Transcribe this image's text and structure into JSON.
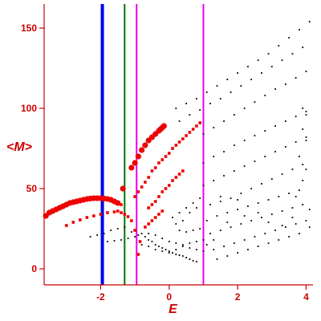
{
  "colors": {
    "axis": "#cc0000",
    "text": "#cc0000",
    "black_points": "#000000",
    "red_points": "#ee0000",
    "line_blue": "#0000ee",
    "line_green": "#007700",
    "line_magenta": "#ee00ee"
  },
  "chart_data": {
    "type": "scatter",
    "title": "",
    "xlabel": "E",
    "ylabel": "<M>",
    "xlim": [
      -3.65,
      4.2
    ],
    "ylim": [
      -10,
      165
    ],
    "x_ticks": [
      -2,
      0,
      2,
      4
    ],
    "y_ticks": [
      0,
      50,
      100,
      150
    ],
    "x_tick_labels": [
      "-2",
      "0",
      "2",
      "4"
    ],
    "y_tick_labels": [
      "0",
      "50",
      "100",
      "150"
    ],
    "grid": false,
    "legend": "none",
    "vertical_lines": [
      {
        "x": -1.95,
        "color": "blue",
        "style": "thick"
      },
      {
        "x": -1.3,
        "color": "green",
        "style": "thin"
      },
      {
        "x": -0.95,
        "color": "magenta",
        "style": "thin"
      },
      {
        "x": 1.0,
        "color": "magenta",
        "style": "thin"
      }
    ],
    "series": [
      {
        "color": "red",
        "marker": "filled-circle",
        "points": [
          [
            -3.6,
            33
          ],
          [
            -3.5,
            35
          ],
          [
            -3.4,
            36
          ],
          [
            -3.3,
            37
          ],
          [
            -3.2,
            38
          ],
          [
            -3.1,
            39
          ],
          [
            -3.0,
            40
          ],
          [
            -2.9,
            41
          ],
          [
            -2.8,
            41.5
          ],
          [
            -2.7,
            42
          ],
          [
            -2.6,
            42.5
          ],
          [
            -2.5,
            43
          ],
          [
            -2.4,
            43.5
          ],
          [
            -2.3,
            43.8
          ],
          [
            -2.2,
            44
          ],
          [
            -2.1,
            44
          ],
          [
            -2.0,
            44
          ],
          [
            -1.9,
            43.8
          ],
          [
            -1.8,
            43.5
          ],
          [
            -1.7,
            43
          ],
          [
            -1.6,
            42
          ],
          [
            -1.5,
            41
          ],
          [
            -1.35,
            50
          ],
          [
            -1.1,
            63
          ],
          [
            -1.0,
            66
          ],
          [
            -0.9,
            70
          ],
          [
            -0.8,
            74
          ],
          [
            -0.7,
            77
          ],
          [
            -0.6,
            80
          ],
          [
            -0.5,
            82
          ],
          [
            -0.4,
            84
          ],
          [
            -0.3,
            86
          ],
          [
            -0.25,
            87
          ],
          [
            -0.2,
            88
          ],
          [
            -0.15,
            89
          ]
        ]
      },
      {
        "color": "red",
        "marker": "small-square",
        "points": [
          [
            -3.0,
            27
          ],
          [
            -2.8,
            29
          ],
          [
            -2.6,
            30.5
          ],
          [
            -2.4,
            32
          ],
          [
            -2.2,
            33
          ],
          [
            -2.0,
            34
          ],
          [
            -1.8,
            35
          ],
          [
            -1.6,
            35.5
          ],
          [
            -1.4,
            35
          ],
          [
            -1.3,
            34
          ],
          [
            -1.2,
            32.5
          ],
          [
            -1.1,
            30
          ],
          [
            -1.5,
            36
          ],
          [
            -1.4,
            40
          ],
          [
            -1.0,
            24
          ],
          [
            -0.9,
            9
          ],
          [
            -0.85,
            17
          ],
          [
            -1.0,
            45
          ],
          [
            -0.9,
            48
          ],
          [
            -0.8,
            51
          ],
          [
            -0.7,
            54
          ],
          [
            -0.6,
            57
          ],
          [
            -0.5,
            61
          ],
          [
            -0.4,
            63
          ],
          [
            -0.3,
            66
          ],
          [
            -0.2,
            68
          ],
          [
            -0.1,
            70
          ],
          [
            0.0,
            72
          ],
          [
            0.1,
            75
          ],
          [
            0.2,
            77
          ],
          [
            0.3,
            79
          ],
          [
            0.4,
            81
          ],
          [
            0.5,
            83
          ],
          [
            0.6,
            85
          ],
          [
            0.7,
            87
          ],
          [
            0.8,
            89
          ],
          [
            0.9,
            91
          ],
          [
            -0.6,
            38
          ],
          [
            -0.5,
            40
          ],
          [
            -0.4,
            42
          ],
          [
            -0.3,
            45
          ],
          [
            -0.2,
            48
          ],
          [
            -0.1,
            50
          ],
          [
            0.0,
            52
          ],
          [
            0.1,
            55
          ],
          [
            0.2,
            57
          ],
          [
            0.3,
            59
          ],
          [
            0.4,
            61
          ],
          [
            -0.7,
            26
          ],
          [
            -0.6,
            28
          ],
          [
            -0.5,
            30
          ],
          [
            -0.4,
            32
          ],
          [
            -0.3,
            34
          ],
          [
            -0.2,
            36
          ]
        ]
      },
      {
        "color": "black",
        "marker": "dot",
        "points": [
          [
            -2.3,
            20
          ],
          [
            -2.1,
            21
          ],
          [
            -1.9,
            22
          ],
          [
            -1.7,
            24
          ],
          [
            -1.5,
            25
          ],
          [
            -1.3,
            26
          ],
          [
            -1.1,
            23
          ],
          [
            -1.8,
            17
          ],
          [
            -1.6,
            17.5
          ],
          [
            -1.4,
            18
          ],
          [
            -1.2,
            19
          ],
          [
            -1.0,
            20
          ],
          [
            -0.9,
            21
          ],
          [
            -0.8,
            22
          ],
          [
            -0.7,
            20
          ],
          [
            -0.6,
            18
          ],
          [
            -0.5,
            17
          ],
          [
            -0.4,
            15
          ],
          [
            -0.3,
            14
          ],
          [
            -0.2,
            13
          ],
          [
            -0.1,
            12
          ],
          [
            0.0,
            11
          ],
          [
            0.1,
            10
          ],
          [
            0.2,
            9
          ],
          [
            0.3,
            8.5
          ],
          [
            0.4,
            8
          ],
          [
            0.5,
            7
          ],
          [
            0.6,
            6
          ],
          [
            0.7,
            5
          ],
          [
            0.8,
            4.5
          ],
          [
            -0.6,
            22
          ],
          [
            -0.4,
            21
          ],
          [
            -0.2,
            19
          ],
          [
            0.0,
            17
          ],
          [
            0.2,
            16
          ],
          [
            0.4,
            15
          ],
          [
            0.6,
            13
          ],
          [
            0.8,
            12
          ],
          [
            1.0,
            11
          ],
          [
            -0.8,
            15
          ],
          [
            -0.6,
            14
          ],
          [
            -0.4,
            12
          ],
          [
            -0.2,
            11
          ],
          [
            0.0,
            10
          ],
          [
            0.2,
            12
          ],
          [
            0.4,
            14
          ],
          [
            0.6,
            16
          ],
          [
            0.8,
            17
          ],
          [
            1.0,
            18
          ],
          [
            0.2,
            100
          ],
          [
            0.5,
            103
          ],
          [
            0.8,
            106
          ],
          [
            1.1,
            110
          ],
          [
            1.4,
            114
          ],
          [
            1.7,
            118
          ],
          [
            2.0,
            122
          ],
          [
            2.3,
            126
          ],
          [
            2.6,
            130
          ],
          [
            2.9,
            134
          ],
          [
            3.2,
            139
          ],
          [
            3.5,
            144
          ],
          [
            3.8,
            149
          ],
          [
            4.1,
            154
          ],
          [
            0.3,
            92
          ],
          [
            0.6,
            96
          ],
          [
            0.9,
            99
          ],
          [
            1.2,
            103
          ],
          [
            1.5,
            106
          ],
          [
            1.8,
            110
          ],
          [
            2.1,
            114
          ],
          [
            2.4,
            118
          ],
          [
            2.7,
            122
          ],
          [
            3.0,
            126
          ],
          [
            3.3,
            130
          ],
          [
            3.6,
            134
          ],
          [
            3.9,
            138
          ],
          [
            1.0,
            84
          ],
          [
            1.3,
            88
          ],
          [
            1.6,
            92
          ],
          [
            1.9,
            96
          ],
          [
            2.2,
            100
          ],
          [
            2.5,
            104
          ],
          [
            2.8,
            108
          ],
          [
            3.1,
            112
          ],
          [
            3.4,
            115
          ],
          [
            3.7,
            119
          ],
          [
            4.0,
            123
          ],
          [
            1.0,
            66
          ],
          [
            1.3,
            70
          ],
          [
            1.6,
            73
          ],
          [
            1.9,
            77
          ],
          [
            2.2,
            80
          ],
          [
            2.5,
            83
          ],
          [
            2.8,
            86
          ],
          [
            3.1,
            89
          ],
          [
            3.4,
            92
          ],
          [
            3.7,
            95
          ],
          [
            4.0,
            98
          ],
          [
            1.0,
            52
          ],
          [
            1.3,
            55
          ],
          [
            1.6,
            58
          ],
          [
            1.9,
            61
          ],
          [
            2.2,
            64
          ],
          [
            2.5,
            67
          ],
          [
            2.8,
            70
          ],
          [
            3.1,
            73
          ],
          [
            3.4,
            76
          ],
          [
            3.7,
            79
          ],
          [
            4.0,
            82
          ],
          [
            1.2,
            40
          ],
          [
            1.5,
            42
          ],
          [
            1.8,
            44
          ],
          [
            2.1,
            47
          ],
          [
            2.4,
            50
          ],
          [
            2.7,
            53
          ],
          [
            3.0,
            56
          ],
          [
            3.3,
            59
          ],
          [
            3.6,
            62
          ],
          [
            3.9,
            65
          ],
          [
            1.1,
            30
          ],
          [
            1.4,
            33
          ],
          [
            1.7,
            35
          ],
          [
            2.0,
            37
          ],
          [
            2.3,
            39
          ],
          [
            2.6,
            41
          ],
          [
            2.9,
            43
          ],
          [
            3.2,
            45
          ],
          [
            3.5,
            47
          ],
          [
            3.8,
            49
          ],
          [
            1.2,
            22
          ],
          [
            1.5,
            24
          ],
          [
            1.8,
            26
          ],
          [
            2.1,
            28
          ],
          [
            2.4,
            30
          ],
          [
            2.7,
            32
          ],
          [
            3.0,
            34
          ],
          [
            3.3,
            36
          ],
          [
            3.6,
            38
          ],
          [
            3.9,
            40
          ],
          [
            1.3,
            12
          ],
          [
            1.6,
            14
          ],
          [
            1.9,
            16
          ],
          [
            2.2,
            18
          ],
          [
            2.5,
            20
          ],
          [
            2.8,
            22
          ],
          [
            3.1,
            24
          ],
          [
            3.4,
            26
          ],
          [
            3.7,
            28
          ],
          [
            4.0,
            30
          ],
          [
            1.4,
            6
          ],
          [
            1.7,
            8
          ],
          [
            2.0,
            10
          ],
          [
            2.3,
            12
          ],
          [
            2.6,
            14
          ],
          [
            2.9,
            16
          ],
          [
            3.2,
            18
          ],
          [
            3.5,
            20
          ],
          [
            3.8,
            22
          ],
          [
            3.9,
            100
          ],
          [
            4.0,
            96
          ],
          [
            3.9,
            87
          ],
          [
            4.0,
            80
          ],
          [
            3.8,
            70
          ],
          [
            4.0,
            62
          ],
          [
            3.9,
            55
          ],
          [
            3.7,
            45
          ],
          [
            4.1,
            37
          ],
          [
            3.6,
            32
          ],
          [
            4.1,
            26
          ],
          [
            3.3,
            27
          ],
          [
            2.9,
            29
          ],
          [
            2.6,
            35
          ],
          [
            2.2,
            33
          ],
          [
            2.0,
            43
          ],
          [
            1.7,
            29
          ],
          [
            1.5,
            45
          ],
          [
            1.3,
            18
          ],
          [
            1.1,
            15
          ],
          [
            0.9,
            44
          ],
          [
            0.7,
            41
          ],
          [
            0.5,
            38
          ],
          [
            0.3,
            35
          ],
          [
            0.1,
            32
          ],
          [
            0.8,
            38
          ],
          [
            0.6,
            35
          ],
          [
            0.4,
            30
          ],
          [
            0.2,
            28
          ],
          [
            0.3,
            24
          ],
          [
            0.5,
            23
          ],
          [
            0.7,
            24
          ],
          [
            0.9,
            25
          ]
        ]
      }
    ]
  }
}
